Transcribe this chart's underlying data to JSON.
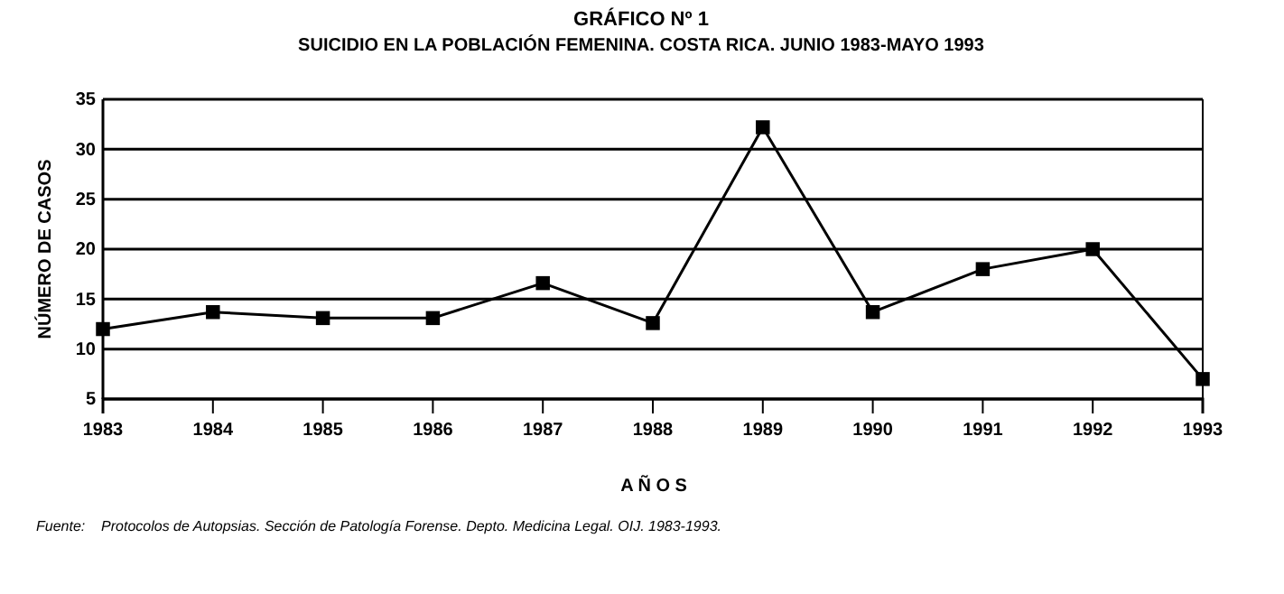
{
  "chart_data": {
    "type": "line",
    "title": "GRÁFICO Nº 1",
    "subtitle": "SUICIDIO EN LA POBLACIÓN FEMENINA. COSTA RICA. JUNIO 1983-MAYO 1993",
    "xlabel": "A Ñ O S",
    "ylabel": "NÚMERO DE CASOS",
    "annotations": [
      "Fuente:    Protocolos de Autopsias. Sección de Patología Forense. Depto. Medicina Legal. OIJ. 1983-1993."
    ],
    "x": [
      1983,
      1984,
      1985,
      1986,
      1987,
      1988,
      1989,
      1990,
      1991,
      1992,
      1993
    ],
    "series": [
      {
        "color": "#000000",
        "values": [
          12,
          13.7,
          13.1,
          13.1,
          16.6,
          12.6,
          32.2,
          13.7,
          18,
          20,
          7
        ]
      }
    ],
    "xlim": [
      1983,
      1993
    ],
    "xticks": [
      1983,
      1984,
      1985,
      1986,
      1987,
      1988,
      1989,
      1990,
      1991,
      1992,
      1993
    ],
    "ylim": [
      5,
      35
    ],
    "yticks": [
      5,
      10,
      15,
      20,
      25,
      30,
      35
    ],
    "grid": "y",
    "marker": "square",
    "line_style": "solid"
  }
}
